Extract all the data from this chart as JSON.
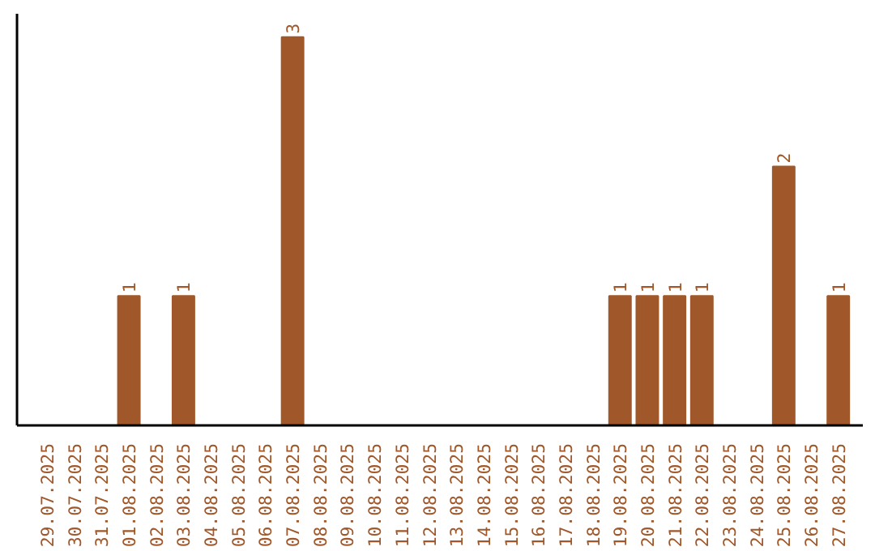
{
  "chart_data": {
    "type": "bar",
    "categories": [
      "29.07.2025",
      "30.07.2025",
      "31.07.2025",
      "01.08.2025",
      "02.08.2025",
      "03.08.2025",
      "04.08.2025",
      "05.08.2025",
      "06.08.2025",
      "07.08.2025",
      "08.08.2025",
      "09.08.2025",
      "10.08.2025",
      "11.08.2025",
      "12.08.2025",
      "13.08.2025",
      "14.08.2025",
      "15.08.2025",
      "16.08.2025",
      "17.08.2025",
      "18.08.2025",
      "19.08.2025",
      "20.08.2025",
      "21.08.2025",
      "22.08.2025",
      "23.08.2025",
      "24.08.2025",
      "25.08.2025",
      "26.08.2025",
      "27.08.2025"
    ],
    "values": [
      0,
      0,
      0,
      1,
      0,
      1,
      0,
      0,
      0,
      3,
      0,
      0,
      0,
      0,
      0,
      0,
      0,
      0,
      0,
      0,
      0,
      1,
      1,
      1,
      1,
      0,
      0,
      2,
      0,
      1
    ],
    "value_labels": [
      null,
      null,
      null,
      "1",
      null,
      "1",
      null,
      null,
      null,
      "3",
      null,
      null,
      null,
      null,
      null,
      null,
      null,
      null,
      null,
      null,
      null,
      "1",
      "1",
      "1",
      "1",
      null,
      null,
      "2",
      null,
      "1"
    ],
    "color": "#a0582a",
    "tick_labels": "x",
    "grid": false
  }
}
